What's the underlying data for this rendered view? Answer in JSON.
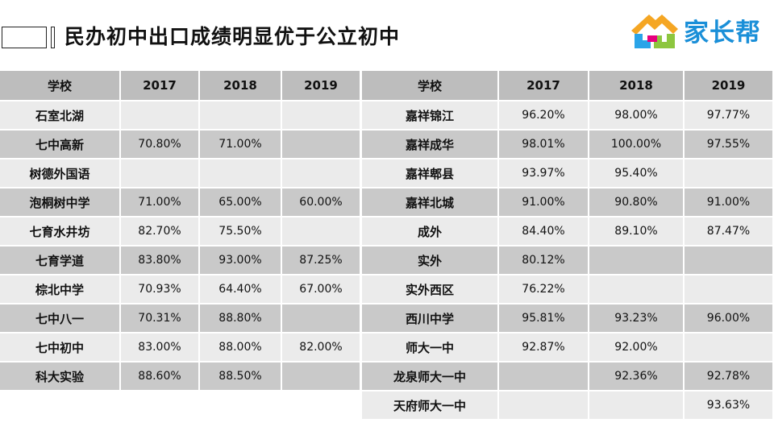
{
  "title": "民办初中出口成绩明显优于公立初中",
  "logo": {
    "text": "家长帮",
    "icon": "house-logo-icon"
  },
  "left_table": {
    "headers": [
      "学校",
      "2017",
      "2018",
      "2019"
    ],
    "rows": [
      [
        "石室北湖",
        "",
        "",
        ""
      ],
      [
        "七中高新",
        "70.80%",
        "71.00%",
        ""
      ],
      [
        "树德外国语",
        "",
        "",
        ""
      ],
      [
        "泡桐树中学",
        "71.00%",
        "65.00%",
        "60.00%"
      ],
      [
        "七育水井坊",
        "82.70%",
        "75.50%",
        ""
      ],
      [
        "七育学道",
        "83.80%",
        "93.00%",
        "87.25%"
      ],
      [
        "棕北中学",
        "70.93%",
        "64.40%",
        "67.00%"
      ],
      [
        "七中八一",
        "70.31%",
        "88.80%",
        ""
      ],
      [
        "七中初中",
        "83.00%",
        "88.00%",
        "82.00%"
      ],
      [
        "科大实验",
        "88.60%",
        "88.50%",
        ""
      ]
    ]
  },
  "right_table": {
    "headers": [
      "学校",
      "2017",
      "2018",
      "2019"
    ],
    "rows": [
      [
        "嘉祥锦江",
        "96.20%",
        "98.00%",
        "97.77%"
      ],
      [
        "嘉祥成华",
        "98.01%",
        "100.00%",
        "97.55%"
      ],
      [
        "嘉祥郫县",
        "93.97%",
        "95.40%",
        ""
      ],
      [
        "嘉祥北城",
        "91.00%",
        "90.80%",
        "91.00%"
      ],
      [
        "成外",
        "84.40%",
        "89.10%",
        "87.47%"
      ],
      [
        "实外",
        "80.12%",
        "",
        ""
      ],
      [
        "实外西区",
        "76.22%",
        "",
        ""
      ],
      [
        "西川中学",
        "95.81%",
        "93.23%",
        "96.00%"
      ],
      [
        "师大一中",
        "92.87%",
        "92.00%",
        ""
      ],
      [
        "龙泉师大一中",
        "",
        "92.36%",
        "92.78%"
      ],
      [
        "天府师大一中",
        "",
        "",
        "93.63%"
      ]
    ]
  }
}
